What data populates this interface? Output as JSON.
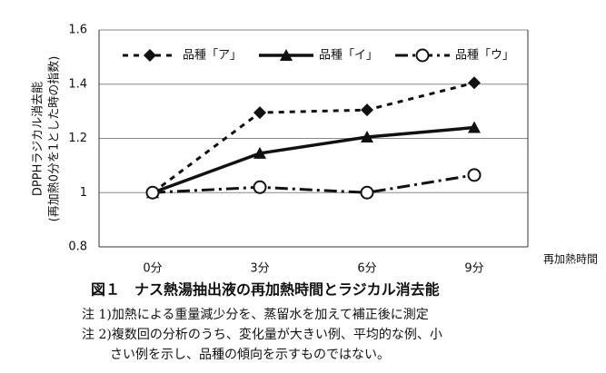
{
  "chart_data": {
    "type": "line",
    "y_label_lines": [
      "DPPHラジカル消去能",
      "(再加熱0分を1とした時の指数)"
    ],
    "x_label": "再加熱時間",
    "categories": [
      "0分",
      "3分",
      "6分",
      "9分"
    ],
    "series": [
      {
        "name": "品種「ア」",
        "color": "#111111",
        "line_style": "dashed",
        "marker": "diamond",
        "values": [
          1.0,
          1.295,
          1.305,
          1.405
        ]
      },
      {
        "name": "品種「イ」",
        "color": "#111111",
        "line_style": "solid",
        "marker": "triangle",
        "values": [
          1.0,
          1.145,
          1.205,
          1.24
        ]
      },
      {
        "name": "品種「ウ」",
        "color": "#111111",
        "line_style": "dashdot",
        "marker": "circle-open",
        "values": [
          1.0,
          1.02,
          1.0,
          1.065
        ]
      }
    ],
    "ylim": [
      0.8,
      1.6
    ],
    "yticks": [
      0.8,
      1,
      1.2,
      1.4,
      1.6
    ],
    "grid": true,
    "legend": "top"
  },
  "caption": "図１　ナス熱湯抽出液の再加熱時間とラジカル消去能",
  "notes": [
    "注 1)加熱による重量減少分を、蒸留水を加えて補正後に測定",
    "注 2)複数回の分析のうち、変化量が大きい例、平均的な例、小",
    "さい例を示し、品種の傾向を示すものではない。"
  ]
}
